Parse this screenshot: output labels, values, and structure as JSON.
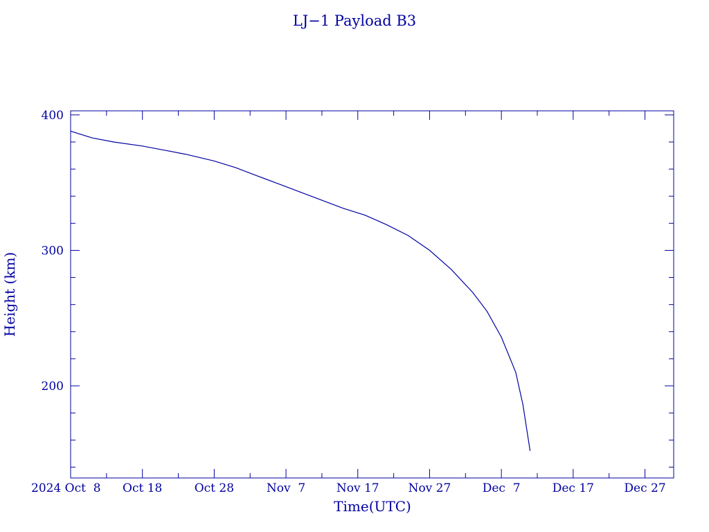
{
  "chart_data": {
    "type": "line",
    "title": "LJ−1 Payload B3",
    "xlabel": "Time(UTC)",
    "ylabel": "Height (km)",
    "color": "#0000a0",
    "grid": false,
    "xlim": [
      "2024-10-08",
      "2024-12-31"
    ],
    "ylim": [
      132,
      403
    ],
    "y_ticks": [
      400,
      300,
      200
    ],
    "x_ticks": [
      {
        "date": "2024-10-08",
        "label": "2024 Oct  8"
      },
      {
        "date": "2024-10-18",
        "label": "Oct 18"
      },
      {
        "date": "2024-10-28",
        "label": "Oct 28"
      },
      {
        "date": "2024-11-07",
        "label": "Nov  7"
      },
      {
        "date": "2024-11-17",
        "label": "Nov 17"
      },
      {
        "date": "2024-11-27",
        "label": "Nov 27"
      },
      {
        "date": "2024-12-07",
        "label": "Dec  7"
      },
      {
        "date": "2024-12-17",
        "label": "Dec 17"
      },
      {
        "date": "2024-12-27",
        "label": "Dec 27"
      }
    ],
    "series": [
      {
        "points": [
          [
            "2024-10-08",
            388
          ],
          [
            "2024-10-11",
            383
          ],
          [
            "2024-10-14",
            380
          ],
          [
            "2024-10-18",
            377
          ],
          [
            "2024-10-21",
            374
          ],
          [
            "2024-10-24",
            371
          ],
          [
            "2024-10-28",
            366
          ],
          [
            "2024-10-31",
            361
          ],
          [
            "2024-11-03",
            355
          ],
          [
            "2024-11-06",
            349
          ],
          [
            "2024-11-09",
            343
          ],
          [
            "2024-11-12",
            337
          ],
          [
            "2024-11-15",
            331
          ],
          [
            "2024-11-18",
            326
          ],
          [
            "2024-11-21",
            319
          ],
          [
            "2024-11-24",
            311
          ],
          [
            "2024-11-27",
            300
          ],
          [
            "2024-11-30",
            286
          ],
          [
            "2024-12-03",
            269
          ],
          [
            "2024-12-05",
            255
          ],
          [
            "2024-12-07",
            236
          ],
          [
            "2024-12-09",
            210
          ],
          [
            "2024-12-10",
            186
          ],
          [
            "2024-12-11",
            152
          ]
        ]
      }
    ]
  }
}
